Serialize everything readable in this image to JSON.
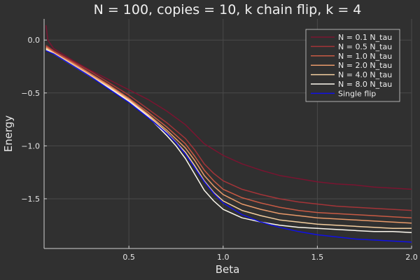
{
  "chart_data": {
    "type": "line",
    "title": "N = 100, copies = 10, k chain flip, k = 4",
    "xlabel": "Beta",
    "ylabel": "Energy",
    "xlim": [
      0.05,
      2.0
    ],
    "ylim": [
      -1.97,
      0.2
    ],
    "xticks": [
      0.5,
      1.0,
      1.5,
      2.0
    ],
    "xtick_labels": [
      "0.5",
      "1.0",
      "1.5",
      "2.0"
    ],
    "yticks": [
      0.0,
      -0.5,
      -1.0,
      -1.5
    ],
    "ytick_labels": [
      "0.0",
      "−0.5",
      "−1.0",
      "−1.5"
    ],
    "grid": true,
    "legend_position": "top-right",
    "background": "#303030",
    "series": [
      {
        "name": "N = 0.1 N_tau",
        "color": "#7a1430",
        "x": [
          0.06,
          0.07,
          0.1,
          0.2,
          0.3,
          0.4,
          0.5,
          0.6,
          0.7,
          0.8,
          0.9,
          1.0,
          1.1,
          1.2,
          1.3,
          1.4,
          1.5,
          1.6,
          1.7,
          1.8,
          1.9,
          2.0
        ],
        "y": [
          0.14,
          0.0,
          -0.08,
          -0.19,
          -0.29,
          -0.38,
          -0.47,
          -0.56,
          -0.67,
          -0.8,
          -0.98,
          -1.09,
          -1.17,
          -1.23,
          -1.28,
          -1.31,
          -1.34,
          -1.36,
          -1.37,
          -1.39,
          -1.4,
          -1.41
        ]
      },
      {
        "name": "N = 0.5 N_tau",
        "color": "#a43438",
        "x": [
          0.06,
          0.1,
          0.2,
          0.3,
          0.4,
          0.5,
          0.6,
          0.7,
          0.8,
          0.85,
          0.9,
          0.95,
          1.0,
          1.1,
          1.2,
          1.3,
          1.4,
          1.5,
          1.6,
          1.7,
          1.8,
          1.9,
          2.0
        ],
        "y": [
          -0.05,
          -0.1,
          -0.2,
          -0.3,
          -0.41,
          -0.52,
          -0.65,
          -0.78,
          -0.93,
          -1.04,
          -1.17,
          -1.26,
          -1.33,
          -1.41,
          -1.46,
          -1.5,
          -1.53,
          -1.55,
          -1.57,
          -1.58,
          -1.59,
          -1.6,
          -1.61
        ]
      },
      {
        "name": "N = 1.0 N_tau",
        "color": "#c85a44",
        "x": [
          0.06,
          0.1,
          0.2,
          0.3,
          0.4,
          0.5,
          0.6,
          0.7,
          0.8,
          0.85,
          0.9,
          0.95,
          1.0,
          1.1,
          1.2,
          1.3,
          1.4,
          1.5,
          1.6,
          1.7,
          1.8,
          1.9,
          2.0
        ],
        "y": [
          -0.06,
          -0.11,
          -0.21,
          -0.32,
          -0.43,
          -0.55,
          -0.68,
          -0.82,
          -0.98,
          -1.1,
          -1.23,
          -1.33,
          -1.41,
          -1.49,
          -1.54,
          -1.58,
          -1.61,
          -1.63,
          -1.64,
          -1.65,
          -1.66,
          -1.67,
          -1.68
        ]
      },
      {
        "name": "N = 2.0 N_tau",
        "color": "#e89a6a",
        "x": [
          0.06,
          0.1,
          0.2,
          0.3,
          0.4,
          0.5,
          0.6,
          0.7,
          0.8,
          0.85,
          0.9,
          0.95,
          1.0,
          1.1,
          1.2,
          1.3,
          1.4,
          1.5,
          1.6,
          1.7,
          1.8,
          1.9,
          2.0
        ],
        "y": [
          -0.07,
          -0.12,
          -0.22,
          -0.33,
          -0.44,
          -0.56,
          -0.7,
          -0.85,
          -1.02,
          -1.14,
          -1.28,
          -1.38,
          -1.46,
          -1.55,
          -1.6,
          -1.64,
          -1.66,
          -1.68,
          -1.69,
          -1.7,
          -1.71,
          -1.72,
          -1.73
        ]
      },
      {
        "name": "N = 4.0 N_tau",
        "color": "#f4cfa0",
        "x": [
          0.06,
          0.1,
          0.2,
          0.3,
          0.4,
          0.5,
          0.6,
          0.7,
          0.8,
          0.85,
          0.9,
          0.95,
          1.0,
          1.1,
          1.2,
          1.3,
          1.4,
          1.5,
          1.6,
          1.7,
          1.8,
          1.9,
          2.0
        ],
        "y": [
          -0.08,
          -0.12,
          -0.23,
          -0.34,
          -0.45,
          -0.57,
          -0.71,
          -0.87,
          -1.06,
          -1.19,
          -1.33,
          -1.44,
          -1.52,
          -1.61,
          -1.66,
          -1.7,
          -1.72,
          -1.74,
          -1.75,
          -1.76,
          -1.77,
          -1.78,
          -1.78
        ]
      },
      {
        "name": "N = 8.0 N_tau",
        "color": "#fcf8ee",
        "x": [
          0.06,
          0.1,
          0.2,
          0.3,
          0.4,
          0.5,
          0.6,
          0.7,
          0.75,
          0.8,
          0.85,
          0.9,
          0.95,
          1.0,
          1.1,
          1.2,
          1.3,
          1.4,
          1.5,
          1.6,
          1.7,
          1.8,
          1.9,
          2.0
        ],
        "y": [
          -0.09,
          -0.13,
          -0.24,
          -0.35,
          -0.46,
          -0.58,
          -0.72,
          -0.9,
          -1.0,
          -1.12,
          -1.27,
          -1.42,
          -1.52,
          -1.6,
          -1.68,
          -1.72,
          -1.75,
          -1.77,
          -1.78,
          -1.79,
          -1.8,
          -1.81,
          -1.81,
          -1.82
        ]
      },
      {
        "name": "Single flip",
        "color": "#1010e8",
        "x": [
          0.06,
          0.1,
          0.2,
          0.3,
          0.4,
          0.5,
          0.6,
          0.7,
          0.75,
          0.8,
          0.85,
          0.9,
          0.95,
          1.0,
          1.1,
          1.2,
          1.3,
          1.4,
          1.5,
          1.6,
          1.7,
          1.8,
          1.9,
          2.0
        ],
        "y": [
          -0.1,
          -0.13,
          -0.24,
          -0.35,
          -0.47,
          -0.59,
          -0.73,
          -0.88,
          -0.97,
          -1.08,
          -1.21,
          -1.34,
          -1.45,
          -1.54,
          -1.65,
          -1.72,
          -1.77,
          -1.81,
          -1.84,
          -1.86,
          -1.88,
          -1.89,
          -1.9,
          -1.91
        ]
      }
    ]
  }
}
